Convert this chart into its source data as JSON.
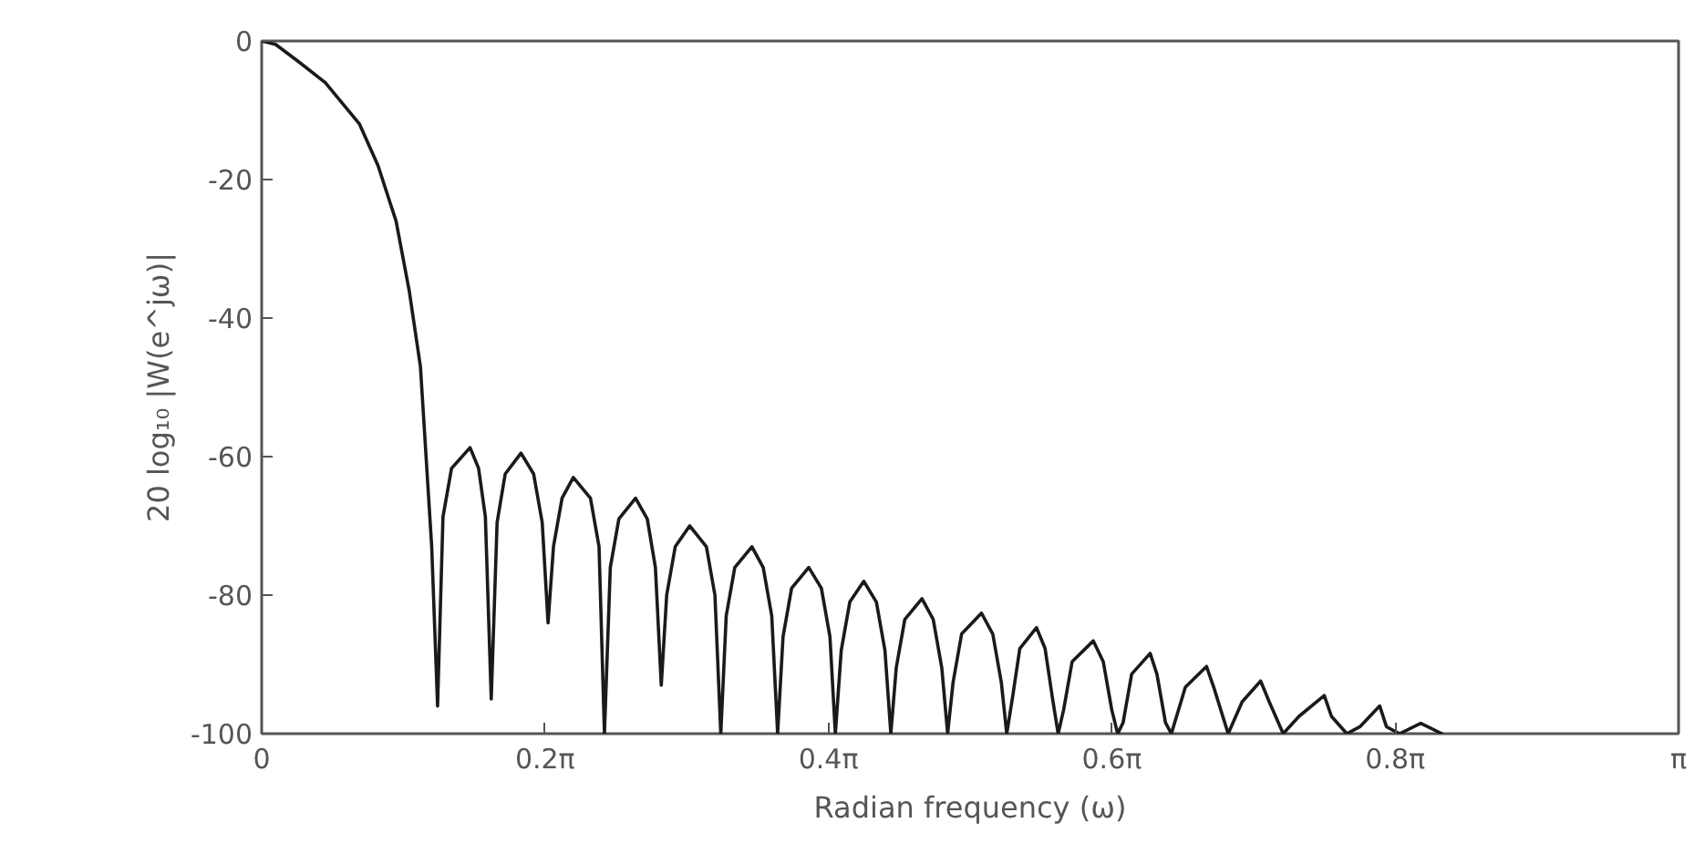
{
  "chart_data": {
    "type": "line",
    "xlabel": "Radian frequency (ω)",
    "ylabel": "20 log₁₀ |W(e^jω)|",
    "color": "#1a1a1a",
    "x": [
      0,
      0.031,
      0.082,
      0.141,
      0.217,
      0.258,
      0.298,
      0.327,
      0.352,
      0.377,
      0.39,
      0.402,
      0.421,
      0.462,
      0.481,
      0.496,
      0.509,
      0.522,
      0.54,
      0.575,
      0.603,
      0.622,
      0.635,
      0.647,
      0.666,
      0.691,
      0.729,
      0.748,
      0.76,
      0.773,
      0.792,
      0.829,
      0.855,
      0.873,
      0.886,
      0.898,
      0.917,
      0.949,
      0.986,
      1.005,
      1.018,
      1.03,
      1.049,
      1.087,
      1.112,
      1.131,
      1.144,
      1.156,
      1.175,
      1.213,
      1.241,
      1.26,
      1.272,
      1.285,
      1.304,
      1.335,
      1.363,
      1.382,
      1.395,
      1.407,
      1.426,
      1.464,
      1.489,
      1.508,
      1.521,
      1.533,
      1.552,
      1.596,
      1.621,
      1.64,
      1.652,
      1.665,
      1.681,
      1.718,
      1.737,
      1.753,
      1.766,
      1.778,
      1.797,
      1.844,
      1.866,
      1.885,
      1.898,
      1.91,
      1.929,
      1.97,
      1.985,
      2.004,
      2.017,
      2.048,
      2.095,
      2.111,
      2.143,
      2.174,
      2.215,
      2.234,
      2.265,
      2.3,
      2.356,
      2.372,
      2.406,
      2.435,
      2.479,
      2.494,
      2.523,
      2.57,
      2.617
    ],
    "values": [
      0,
      -0.5,
      -3,
      -6,
      -12,
      -18,
      -26,
      -36,
      -47,
      -73,
      -96,
      -68.7,
      -61.7,
      -58.7,
      -61.7,
      -68.7,
      -95,
      -69.5,
      -62.5,
      -59.5,
      -62.5,
      -69.5,
      -84,
      -73,
      -66,
      -63,
      -66,
      -73,
      -100,
      -76,
      -69,
      -66,
      -69,
      -76,
      -93,
      -80,
      -73,
      -70,
      -73,
      -80,
      -100,
      -83,
      -76,
      -73,
      -76,
      -83,
      -100,
      -86,
      -79,
      -76,
      -79,
      -86,
      -100,
      -88,
      -81,
      -78,
      -81,
      -88,
      -100,
      -90.5,
      -83.5,
      -80.5,
      -83.5,
      -90.5,
      -100,
      -92.6,
      -85.6,
      -82.6,
      -85.6,
      -92.6,
      -100,
      -94.7,
      -87.7,
      -84.7,
      -87.7,
      -94.7,
      -100,
      -96.6,
      -89.6,
      -86.6,
      -89.6,
      -96.6,
      -100,
      -98.4,
      -91.4,
      -88.4,
      -91.4,
      -98.4,
      -100,
      -93.3,
      -90.3,
      -93.3,
      -100,
      -95.4,
      -92.4,
      -95.4,
      -100,
      -97.5,
      -94.5,
      -97.5,
      -100,
      -99,
      -96,
      -99,
      -100,
      -98.5,
      -100
    ],
    "xlim": [
      0,
      3.1416
    ],
    "xticks": [
      0,
      {
        "value": 0.6283,
        "label": "0.2π"
      },
      {
        "value": 1.2566,
        "label": "0.4π"
      },
      {
        "value": 1.885,
        "label": "0.6π"
      },
      {
        "value": 2.5133,
        "label": "0.8π"
      },
      {
        "value": 3.1416,
        "label": "π"
      }
    ],
    "ylim": [
      -100,
      0
    ],
    "yticks": [
      0,
      -20,
      -40,
      -60,
      -80,
      -100
    ],
    "grid": false
  }
}
